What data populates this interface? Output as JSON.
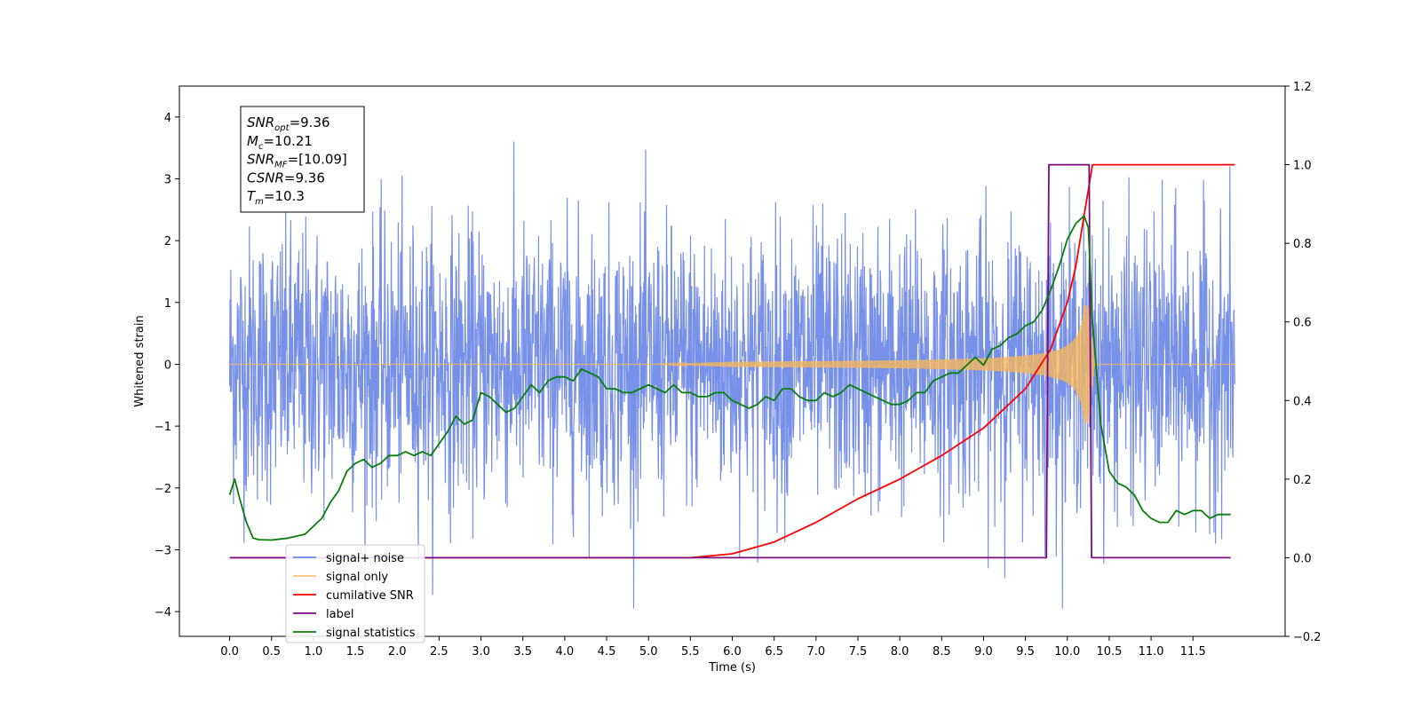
{
  "chart_data": {
    "type": "line",
    "xlabel": "Time (s)",
    "ylabel": "Whitened strain",
    "xlim": [
      -0.6,
      12.6
    ],
    "ylim": [
      -4.4,
      4.5
    ],
    "ylim_right": [
      -0.2,
      1.2
    ],
    "x_ticks": [
      0.0,
      0.5,
      1.0,
      1.5,
      2.0,
      2.5,
      3.0,
      3.5,
      4.0,
      4.5,
      5.0,
      5.5,
      6.0,
      6.5,
      7.0,
      7.5,
      8.0,
      8.5,
      9.0,
      9.5,
      10.0,
      10.5,
      11.0,
      11.5
    ],
    "x_tick_labels": [
      "0.0",
      "0.5",
      "1.0",
      "1.5",
      "2.0",
      "2.5",
      "3.0",
      "3.5",
      "4.0",
      "4.5",
      "5.0",
      "5.5",
      "6.0",
      "6.5",
      "7.0",
      "7.5",
      "8.0",
      "8.5",
      "9.0",
      "9.5",
      "10.0",
      "10.5",
      "11.0",
      "11.5"
    ],
    "y_ticks": [
      -4,
      -3,
      -2,
      -1,
      0,
      1,
      2,
      3,
      4
    ],
    "y_tick_labels": [
      "−4",
      "−3",
      "−2",
      "−1",
      "0",
      "1",
      "2",
      "3",
      "4"
    ],
    "y_right_ticks": [
      -0.2,
      0.0,
      0.2,
      0.4,
      0.6,
      0.8,
      1.0,
      1.2
    ],
    "y_right_tick_labels": [
      "−0.2",
      "0.0",
      "0.2",
      "0.4",
      "0.6",
      "0.8",
      "1.0",
      "1.2"
    ],
    "grid": false,
    "legend_position": "lower-left",
    "annotation_lines": [
      {
        "main": "SNR",
        "sub": "opt",
        "rest": "=9.36"
      },
      {
        "main": "M",
        "sub": "c",
        "rest": "=10.21"
      },
      {
        "main": "SNR",
        "sub": "MF",
        "rest": "=[10.09]"
      },
      {
        "main": "CSNR",
        "sub": "",
        "rest": "=9.36"
      },
      {
        "main": "T",
        "sub": "m",
        "rest": "=10.3"
      }
    ],
    "series": [
      {
        "name": "signal+ noise",
        "axis": "left",
        "color": "#6b87e6",
        "x_range": [
          0.0,
          12.0
        ],
        "noise_amplitude": 1.1,
        "description_level": "noise centred at 0"
      },
      {
        "name": "signal only",
        "axis": "left",
        "color": "#f5b55b",
        "x_range": [
          0.0,
          12.0
        ],
        "merger_time": 10.25,
        "peak_amplitude": 0.95
      },
      {
        "name": "cumilative SNR",
        "axis": "right",
        "color": "#ff0000",
        "x": [
          0.0,
          5.5,
          6.0,
          6.5,
          7.0,
          7.5,
          8.0,
          8.5,
          9.0,
          9.5,
          9.8,
          10.0,
          10.1,
          10.2,
          10.3,
          10.5,
          11.0,
          11.5,
          12.0
        ],
        "y": [
          0.0,
          0.0,
          0.01,
          0.04,
          0.09,
          0.15,
          0.2,
          0.26,
          0.33,
          0.43,
          0.53,
          0.65,
          0.74,
          0.87,
          1.0,
          1.0,
          1.0,
          1.0,
          1.0
        ]
      },
      {
        "name": "label",
        "axis": "right",
        "color": "#7b0a7e",
        "x": [
          0.0,
          9.75,
          9.78,
          10.26,
          10.29,
          11.95
        ],
        "y": [
          0.0,
          0.0,
          1.0,
          1.0,
          0.0,
          0.0
        ]
      },
      {
        "name": "signal statistics",
        "axis": "right",
        "color": "#0a7d0a",
        "x": [
          0.0,
          0.06,
          0.12,
          0.2,
          0.28,
          0.35,
          0.5,
          0.7,
          0.9,
          1.0,
          1.1,
          1.2,
          1.3,
          1.4,
          1.5,
          1.6,
          1.7,
          1.8,
          1.9,
          2.0,
          2.1,
          2.2,
          2.3,
          2.4,
          2.5,
          2.6,
          2.7,
          2.8,
          2.9,
          3.0,
          3.1,
          3.2,
          3.3,
          3.4,
          3.5,
          3.6,
          3.7,
          3.8,
          3.9,
          4.0,
          4.1,
          4.2,
          4.3,
          4.4,
          4.5,
          4.6,
          4.7,
          4.8,
          4.9,
          5.0,
          5.1,
          5.2,
          5.3,
          5.4,
          5.5,
          5.6,
          5.7,
          5.8,
          5.9,
          6.0,
          6.1,
          6.2,
          6.3,
          6.4,
          6.5,
          6.6,
          6.7,
          6.8,
          6.9,
          7.0,
          7.1,
          7.2,
          7.3,
          7.4,
          7.5,
          7.6,
          7.7,
          7.8,
          7.9,
          8.0,
          8.1,
          8.2,
          8.3,
          8.4,
          8.5,
          8.6,
          8.7,
          8.8,
          8.9,
          9.0,
          9.1,
          9.2,
          9.3,
          9.4,
          9.5,
          9.6,
          9.7,
          9.8,
          9.9,
          10.0,
          10.1,
          10.2,
          10.25,
          10.3,
          10.4,
          10.5,
          10.6,
          10.7,
          10.8,
          10.9,
          11.0,
          11.1,
          11.2,
          11.3,
          11.4,
          11.5,
          11.6,
          11.7,
          11.8,
          11.9,
          11.95
        ],
        "y": [
          0.16,
          0.2,
          0.15,
          0.09,
          0.05,
          0.046,
          0.045,
          0.05,
          0.06,
          0.08,
          0.1,
          0.14,
          0.17,
          0.22,
          0.24,
          0.25,
          0.23,
          0.24,
          0.26,
          0.26,
          0.27,
          0.26,
          0.27,
          0.26,
          0.29,
          0.32,
          0.36,
          0.34,
          0.35,
          0.42,
          0.41,
          0.39,
          0.37,
          0.38,
          0.41,
          0.44,
          0.42,
          0.45,
          0.46,
          0.46,
          0.45,
          0.48,
          0.47,
          0.46,
          0.43,
          0.43,
          0.42,
          0.42,
          0.43,
          0.44,
          0.43,
          0.42,
          0.44,
          0.42,
          0.42,
          0.41,
          0.41,
          0.42,
          0.42,
          0.4,
          0.39,
          0.38,
          0.39,
          0.41,
          0.4,
          0.43,
          0.43,
          0.41,
          0.4,
          0.4,
          0.42,
          0.41,
          0.42,
          0.44,
          0.43,
          0.42,
          0.41,
          0.4,
          0.39,
          0.39,
          0.4,
          0.42,
          0.42,
          0.45,
          0.46,
          0.47,
          0.47,
          0.49,
          0.51,
          0.49,
          0.53,
          0.54,
          0.56,
          0.57,
          0.59,
          0.6,
          0.63,
          0.68,
          0.74,
          0.81,
          0.85,
          0.87,
          0.84,
          0.6,
          0.34,
          0.22,
          0.19,
          0.18,
          0.16,
          0.12,
          0.1,
          0.09,
          0.09,
          0.12,
          0.11,
          0.12,
          0.12,
          0.1,
          0.11,
          0.11,
          0.11
        ]
      }
    ]
  }
}
